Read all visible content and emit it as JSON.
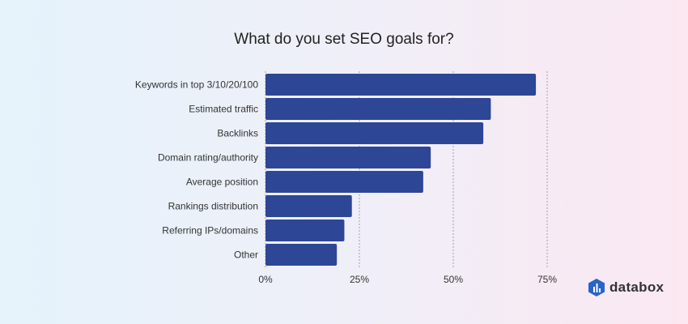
{
  "chart_data": {
    "type": "bar",
    "orientation": "horizontal",
    "title": "What do you set SEO goals for?",
    "categories": [
      "Keywords in top 3/10/20/100",
      "Estimated traffic",
      "Backlinks",
      "Domain rating/authority",
      "Average position",
      "Rankings distribution",
      "Referring IPs/domains",
      "Other"
    ],
    "values": [
      72,
      60,
      58,
      44,
      42,
      23,
      21,
      19
    ],
    "unit": "%",
    "xlim": [
      0,
      75
    ],
    "xticks": [
      "0%",
      "25%",
      "50%",
      "75%"
    ],
    "xtick_values": [
      0,
      25,
      50,
      75
    ],
    "grid": "vertical dashed",
    "bar_color": "#2d4696"
  },
  "brand": {
    "name": "databox"
  }
}
